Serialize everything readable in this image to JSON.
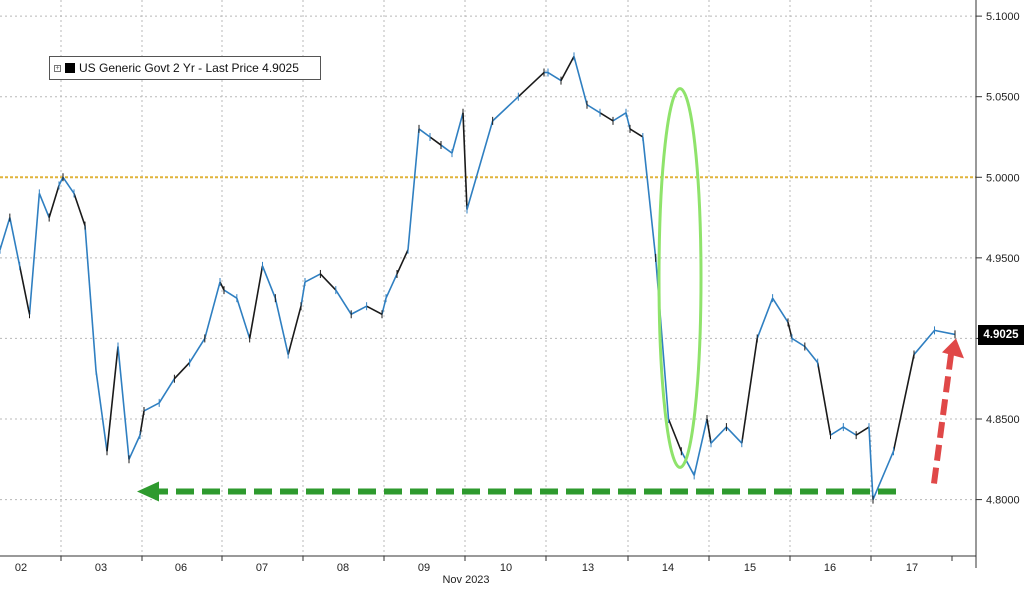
{
  "legend": {
    "toggle_icon": "expand-box-icon",
    "label": "US Generic Govt 2 Yr - Last Price 4.9025"
  },
  "last_price_label": "4.9025",
  "x_axis_title": "Nov 2023",
  "colors": {
    "series": "#2f7fc1",
    "series_dark": "#1a1a1a",
    "reference_line": "#e0b43a",
    "highlight_ellipse": "#8fe36b",
    "support_arrow": "#2e9a2e",
    "rise_arrow": "#e04848",
    "grid": "#b8b8b8"
  },
  "chart_data": {
    "type": "line",
    "series": [
      {
        "name": "US Generic Govt 2 Yr - Last Price",
        "points": [
          [
            "02",
            4.955
          ],
          [
            "02",
            4.975
          ],
          [
            "02",
            4.945
          ],
          [
            "02",
            4.915
          ],
          [
            "02",
            4.99
          ],
          [
            "02",
            4.975
          ],
          [
            "02",
            4.995
          ],
          [
            "03",
            5.0
          ],
          [
            "03",
            4.99
          ],
          [
            "03",
            4.97
          ],
          [
            "03",
            4.88
          ],
          [
            "03",
            4.83
          ],
          [
            "03",
            4.895
          ],
          [
            "03",
            4.825
          ],
          [
            "03",
            4.84
          ],
          [
            "06",
            4.855
          ],
          [
            "06",
            4.86
          ],
          [
            "06",
            4.875
          ],
          [
            "06",
            4.885
          ],
          [
            "06",
            4.9
          ],
          [
            "06",
            4.935
          ],
          [
            "07",
            4.93
          ],
          [
            "07",
            4.925
          ],
          [
            "07",
            4.9
          ],
          [
            "07",
            4.945
          ],
          [
            "07",
            4.925
          ],
          [
            "07",
            4.89
          ],
          [
            "07",
            4.92
          ],
          [
            "08",
            4.935
          ],
          [
            "08",
            4.94
          ],
          [
            "08",
            4.93
          ],
          [
            "08",
            4.915
          ],
          [
            "08",
            4.92
          ],
          [
            "08",
            4.915
          ],
          [
            "09",
            4.925
          ],
          [
            "09",
            4.94
          ],
          [
            "09",
            4.955
          ],
          [
            "09",
            5.03
          ],
          [
            "09",
            5.025
          ],
          [
            "09",
            5.02
          ],
          [
            "09",
            5.015
          ],
          [
            "09",
            5.04
          ],
          [
            "10",
            4.98
          ],
          [
            "10",
            5.035
          ],
          [
            "10",
            5.05
          ],
          [
            "10",
            5.065
          ],
          [
            "13",
            5.065
          ],
          [
            "13",
            5.06
          ],
          [
            "13",
            5.075
          ],
          [
            "13",
            5.045
          ],
          [
            "13",
            5.04
          ],
          [
            "13",
            5.035
          ],
          [
            "13",
            5.04
          ],
          [
            "14",
            5.03
          ],
          [
            "14",
            5.025
          ],
          [
            "14",
            4.95
          ],
          [
            "14",
            4.85
          ],
          [
            "14",
            4.83
          ],
          [
            "14",
            4.815
          ],
          [
            "14",
            4.85
          ],
          [
            "15",
            4.835
          ],
          [
            "15",
            4.845
          ],
          [
            "15",
            4.835
          ],
          [
            "15",
            4.9
          ],
          [
            "15",
            4.925
          ],
          [
            "15",
            4.91
          ],
          [
            "16",
            4.9
          ],
          [
            "16",
            4.895
          ],
          [
            "16",
            4.885
          ],
          [
            "16",
            4.84
          ],
          [
            "16",
            4.845
          ],
          [
            "16",
            4.84
          ],
          [
            "16",
            4.845
          ],
          [
            "17",
            4.8
          ],
          [
            "17",
            4.83
          ],
          [
            "17",
            4.89
          ],
          [
            "17",
            4.905
          ],
          [
            "17",
            4.9025
          ]
        ]
      }
    ],
    "x_ticks": [
      "02",
      "03",
      "06",
      "07",
      "08",
      "09",
      "10",
      "13",
      "14",
      "15",
      "16",
      "17"
    ],
    "y_ticks": [
      "4.8000",
      "4.8500",
      "4.9000",
      "4.9500",
      "5.0000",
      "5.0500",
      "5.1000"
    ],
    "ylim": [
      4.765,
      5.11
    ],
    "xlabel": "Nov 2023",
    "ylabel": "",
    "reference_lines": [
      {
        "y": 5.0,
        "style": "dotted"
      }
    ],
    "annotations": [
      {
        "type": "ellipse",
        "x_range": [
          "14",
          "14"
        ],
        "y_range": [
          4.82,
          5.055
        ]
      },
      {
        "type": "arrow",
        "direction": "left",
        "y": 4.805,
        "x_from": "17",
        "x_to": "03"
      },
      {
        "type": "arrow",
        "direction": "up",
        "x": "17",
        "y_from": 4.81,
        "y_to": 4.9
      }
    ],
    "grid": true,
    "legend_position": "top-left"
  }
}
